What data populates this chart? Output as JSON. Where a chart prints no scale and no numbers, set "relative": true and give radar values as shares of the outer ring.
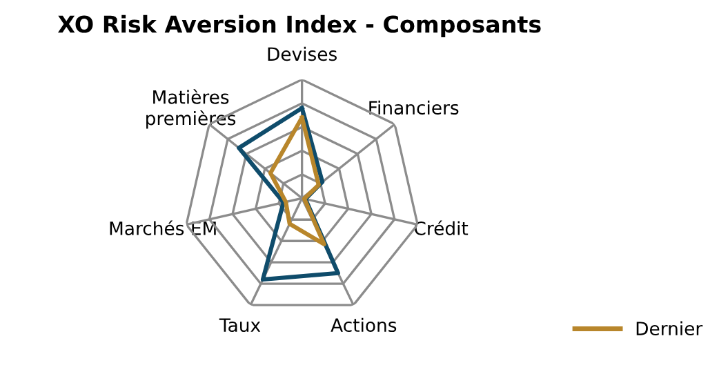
{
  "chart_data": {
    "type": "radar",
    "title": "XO Risk Aversion Index - Composants",
    "relative": true,
    "categories": [
      "Devises",
      "Financiers",
      "Crédit",
      "Actions",
      "Taux",
      "Marchés EM",
      "Matières\npremières"
    ],
    "series": [
      {
        "color": "#0f4c6b",
        "values": [
          0.76,
          0.22,
          0.03,
          0.7,
          0.76,
          0.16,
          0.68
        ]
      },
      {
        "name": "Dernier",
        "color": "#b8862b",
        "values": [
          0.68,
          0.18,
          0.02,
          0.43,
          0.24,
          0.14,
          0.34
        ]
      }
    ],
    "legend": "right",
    "grid": true
  }
}
